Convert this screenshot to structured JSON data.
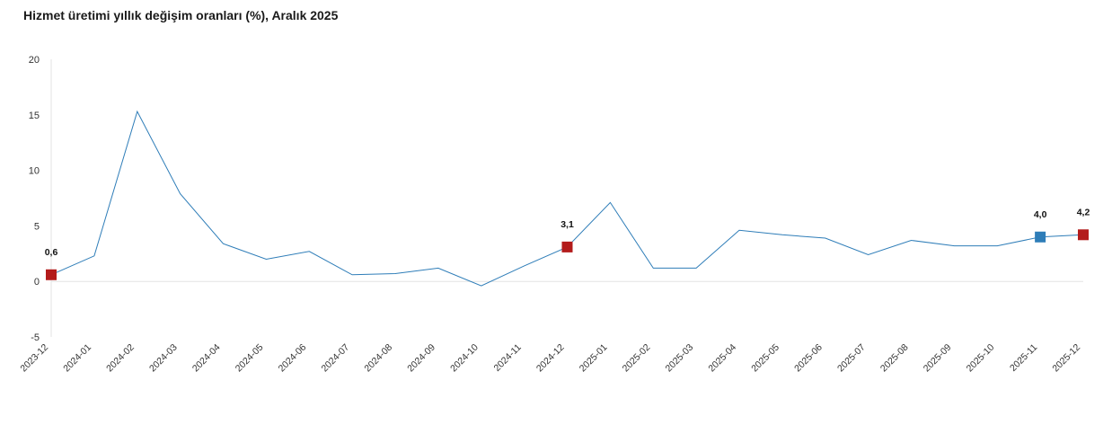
{
  "chart_data": {
    "type": "line",
    "title": "Hizmet üretimi yıllık değişim oranları (%), Aralık 2025",
    "xlabel": "",
    "ylabel": "",
    "ylim": [
      -5,
      20
    ],
    "yticks": [
      "-5",
      "0",
      "5",
      "10",
      "15",
      "20"
    ],
    "categories": [
      "2023-12",
      "2024-01",
      "2024-02",
      "2024-03",
      "2024-04",
      "2024-05",
      "2024-06",
      "2024-07",
      "2024-08",
      "2024-09",
      "2024-10",
      "2024-11",
      "2024-12",
      "2025-01",
      "2025-02",
      "2025-03",
      "2025-04",
      "2025-05",
      "2025-06",
      "2025-07",
      "2025-08",
      "2025-09",
      "2025-10",
      "2025-11",
      "2025-12"
    ],
    "series": [
      {
        "values": [
          0.6,
          2.3,
          15.3,
          7.9,
          3.4,
          2.0,
          2.7,
          0.6,
          0.7,
          1.2,
          -0.4,
          1.4,
          3.1,
          7.1,
          1.2,
          1.2,
          4.6,
          4.2,
          3.9,
          2.4,
          3.7,
          3.2,
          3.2,
          4.0,
          4.2
        ],
        "color": "#2e7db8"
      }
    ],
    "highlights": [
      {
        "index": 0,
        "label": "0,6",
        "color": "#b31b1b"
      },
      {
        "index": 12,
        "label": "3,1",
        "color": "#b31b1b"
      },
      {
        "index": 23,
        "label": "4,0",
        "color": "#2e7db8"
      },
      {
        "index": 24,
        "label": "4,2",
        "color": "#b31b1b"
      }
    ],
    "grid": false,
    "legend": "none"
  }
}
